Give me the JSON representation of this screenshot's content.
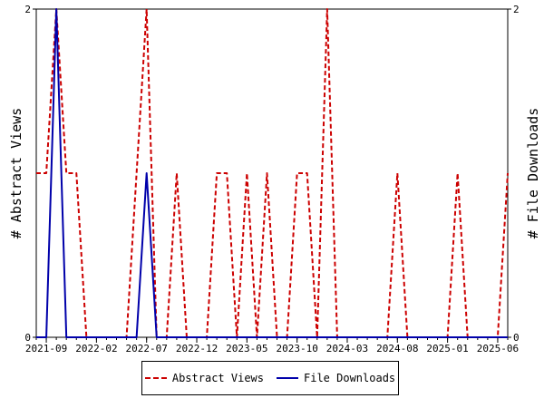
{
  "chart_data": {
    "type": "line",
    "ylabel_left": "# Abstract Views",
    "ylabel_right": "# File Downloads",
    "ylim": [
      0,
      2
    ],
    "yticks": [
      "0",
      "2"
    ],
    "xticks": [
      "2021-09",
      "2022-02",
      "2022-07",
      "2022-12",
      "2023-05",
      "2023-10",
      "2024-03",
      "2024-08",
      "2025-01",
      "2025-06"
    ],
    "x": [
      "2021-08",
      "2021-09",
      "2021-10",
      "2021-11",
      "2021-12",
      "2022-01",
      "2022-02",
      "2022-03",
      "2022-04",
      "2022-05",
      "2022-06",
      "2022-07",
      "2022-08",
      "2022-09",
      "2022-10",
      "2022-11",
      "2022-12",
      "2023-01",
      "2023-02",
      "2023-03",
      "2023-04",
      "2023-05",
      "2023-06",
      "2023-07",
      "2023-08",
      "2023-09",
      "2023-10",
      "2023-11",
      "2023-12",
      "2024-01",
      "2024-02",
      "2024-03",
      "2024-04",
      "2024-05",
      "2024-06",
      "2024-07",
      "2024-08",
      "2024-09",
      "2024-10",
      "2024-11",
      "2024-12",
      "2025-01",
      "2025-02",
      "2025-03",
      "2025-04",
      "2025-05",
      "2025-06",
      "2025-07"
    ],
    "series": [
      {
        "name": "Abstract Views",
        "color": "#cc0000",
        "style": "dashed",
        "values": [
          1,
          1,
          2,
          1,
          1,
          0,
          0,
          0,
          0,
          0,
          1,
          2,
          0,
          0,
          1,
          0,
          0,
          0,
          1,
          1,
          0,
          1,
          0,
          1,
          0,
          0,
          1,
          1,
          0,
          2,
          0,
          0,
          0,
          0,
          0,
          0,
          1,
          0,
          0,
          0,
          0,
          0,
          1,
          0,
          0,
          0,
          0,
          1
        ]
      },
      {
        "name": "File Downloads",
        "color": "#0000aa",
        "style": "solid",
        "values": [
          0,
          0,
          2,
          0,
          0,
          0,
          0,
          0,
          0,
          0,
          0,
          1,
          0,
          0,
          0,
          0,
          0,
          0,
          0,
          0,
          0,
          0,
          0,
          0,
          0,
          0,
          0,
          0,
          0,
          0,
          0,
          0,
          0,
          0,
          0,
          0,
          0,
          0,
          0,
          0,
          0,
          0,
          0,
          0,
          0,
          0,
          0,
          0
        ]
      }
    ],
    "grid": false,
    "legend_position": "bottom"
  }
}
